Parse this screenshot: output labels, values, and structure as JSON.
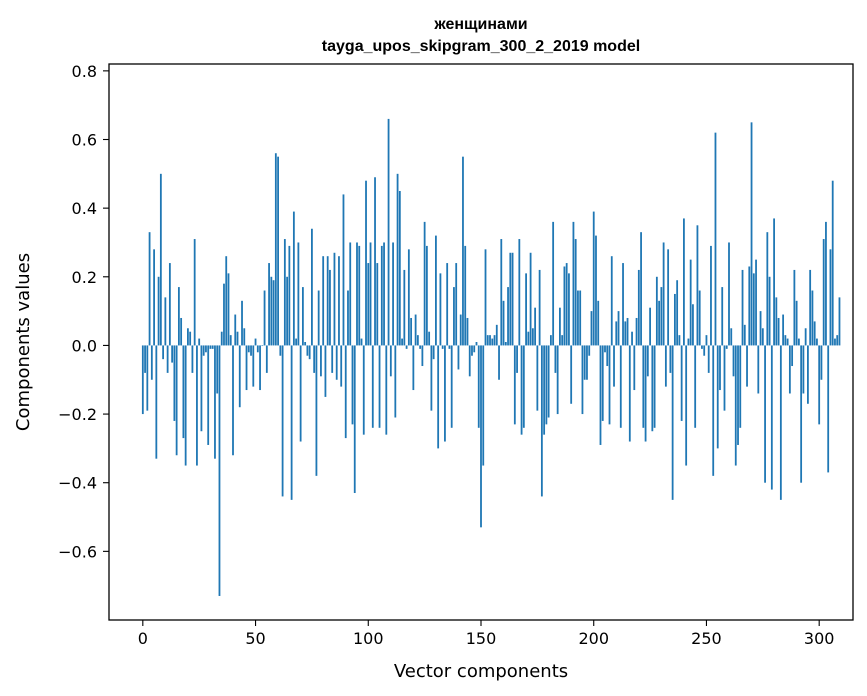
{
  "chart_data": {
    "type": "bar",
    "title_line1": "женщинами",
    "title_line2": "tayga_upos_skipgram_300_2_2019 model",
    "xlabel": "Vector components",
    "ylabel": "Components values",
    "xlim": [
      -15,
      315
    ],
    "ylim": [
      -0.8,
      0.82
    ],
    "xticks": [
      0,
      50,
      100,
      150,
      200,
      250,
      300
    ],
    "yticks": [
      -0.6,
      -0.4,
      -0.2,
      0.0,
      0.2,
      0.4,
      0.6,
      0.8
    ],
    "ytick_labels": [
      "−0.6",
      "−0.4",
      "−0.2",
      "0.0",
      "0.2",
      "0.4",
      "0.6",
      "0.8"
    ],
    "color": "#1f77b4",
    "values": [
      -0.2,
      -0.08,
      -0.19,
      0.33,
      -0.1,
      0.28,
      -0.33,
      0.2,
      0.5,
      -0.04,
      0.14,
      -0.08,
      0.24,
      -0.05,
      -0.22,
      -0.32,
      0.17,
      0.08,
      -0.27,
      -0.35,
      0.05,
      0.04,
      -0.08,
      0.31,
      -0.35,
      0.02,
      -0.25,
      -0.03,
      -0.02,
      -0.29,
      -0.01,
      -0.01,
      -0.33,
      -0.14,
      -0.73,
      0.04,
      0.18,
      0.26,
      0.21,
      0.03,
      -0.32,
      0.09,
      0.04,
      -0.18,
      0.13,
      0.05,
      -0.13,
      -0.02,
      -0.03,
      -0.12,
      0.02,
      -0.02,
      -0.13,
      0.0,
      0.16,
      -0.08,
      0.24,
      0.2,
      0.19,
      0.56,
      0.55,
      -0.03,
      -0.44,
      0.31,
      0.2,
      0.29,
      -0.45,
      0.39,
      0.02,
      0.3,
      -0.28,
      0.17,
      0.01,
      -0.03,
      -0.04,
      0.34,
      -0.08,
      -0.38,
      0.16,
      -0.09,
      0.26,
      -0.15,
      0.26,
      0.22,
      -0.08,
      0.27,
      -0.1,
      0.26,
      -0.12,
      0.44,
      -0.27,
      0.16,
      0.3,
      -0.23,
      -0.43,
      0.3,
      0.29,
      0.02,
      -0.26,
      0.48,
      0.24,
      0.3,
      -0.24,
      0.49,
      0.24,
      -0.24,
      0.29,
      0.3,
      -0.26,
      0.66,
      -0.09,
      0.3,
      -0.21,
      0.5,
      0.45,
      0.02,
      0.22,
      -0.01,
      0.28,
      0.08,
      -0.13,
      0.09,
      0.03,
      -0.01,
      -0.06,
      0.36,
      0.29,
      0.04,
      -0.19,
      -0.04,
      0.32,
      -0.3,
      0.21,
      -0.01,
      -0.28,
      0.24,
      -0.01,
      -0.24,
      0.17,
      0.24,
      -0.07,
      0.09,
      0.55,
      0.29,
      0.08,
      -0.09,
      -0.03,
      -0.02,
      0.01,
      -0.24,
      -0.53,
      -0.35,
      0.28,
      0.03,
      0.03,
      0.02,
      0.03,
      0.06,
      -0.1,
      0.31,
      0.13,
      0.01,
      0.17,
      0.27,
      0.27,
      -0.23,
      -0.08,
      0.31,
      -0.26,
      -0.24,
      0.21,
      0.04,
      0.27,
      0.05,
      0.11,
      -0.19,
      0.22,
      -0.44,
      -0.26,
      -0.23,
      -0.21,
      0.03,
      0.36,
      -0.08,
      -0.2,
      0.11,
      0.03,
      0.23,
      0.24,
      0.21,
      -0.17,
      0.36,
      0.31,
      0.16,
      0.16,
      -0.2,
      -0.1,
      -0.1,
      -0.03,
      0.1,
      0.39,
      0.32,
      0.13,
      -0.29,
      -0.22,
      -0.02,
      -0.06,
      -0.23,
      0.26,
      -0.12,
      0.07,
      0.1,
      -0.24,
      0.24,
      0.07,
      0.08,
      -0.28,
      0.04,
      -0.13,
      0.08,
      0.22,
      0.33,
      -0.24,
      -0.28,
      -0.09,
      0.11,
      -0.25,
      -0.24,
      0.2,
      0.13,
      0.17,
      0.3,
      -0.12,
      0.28,
      -0.08,
      -0.45,
      0.15,
      0.19,
      0.03,
      -0.22,
      0.37,
      -0.35,
      0.02,
      0.25,
      0.12,
      -0.24,
      0.35,
      0.16,
      -0.01,
      -0.03,
      0.03,
      -0.08,
      0.29,
      -0.38,
      0.62,
      -0.3,
      -0.13,
      0.17,
      -0.19,
      -0.01,
      0.3,
      0.05,
      -0.09,
      -0.35,
      -0.29,
      -0.24,
      0.22,
      0.06,
      -0.12,
      0.23,
      0.65,
      0.21,
      0.25,
      -0.14,
      0.1,
      0.05,
      -0.4,
      0.33,
      0.2,
      -0.42,
      0.37,
      0.14,
      0.08,
      -0.45,
      0.09,
      0.03,
      0.02,
      -0.14,
      -0.06,
      0.22,
      0.13,
      0.02,
      -0.4,
      -0.14,
      0.05,
      -0.17,
      0.22,
      0.16,
      0.07,
      0.02,
      -0.23,
      -0.1,
      0.31,
      0.36,
      -0.37,
      0.28,
      0.48,
      0.02,
      0.03,
      0.14
    ]
  }
}
